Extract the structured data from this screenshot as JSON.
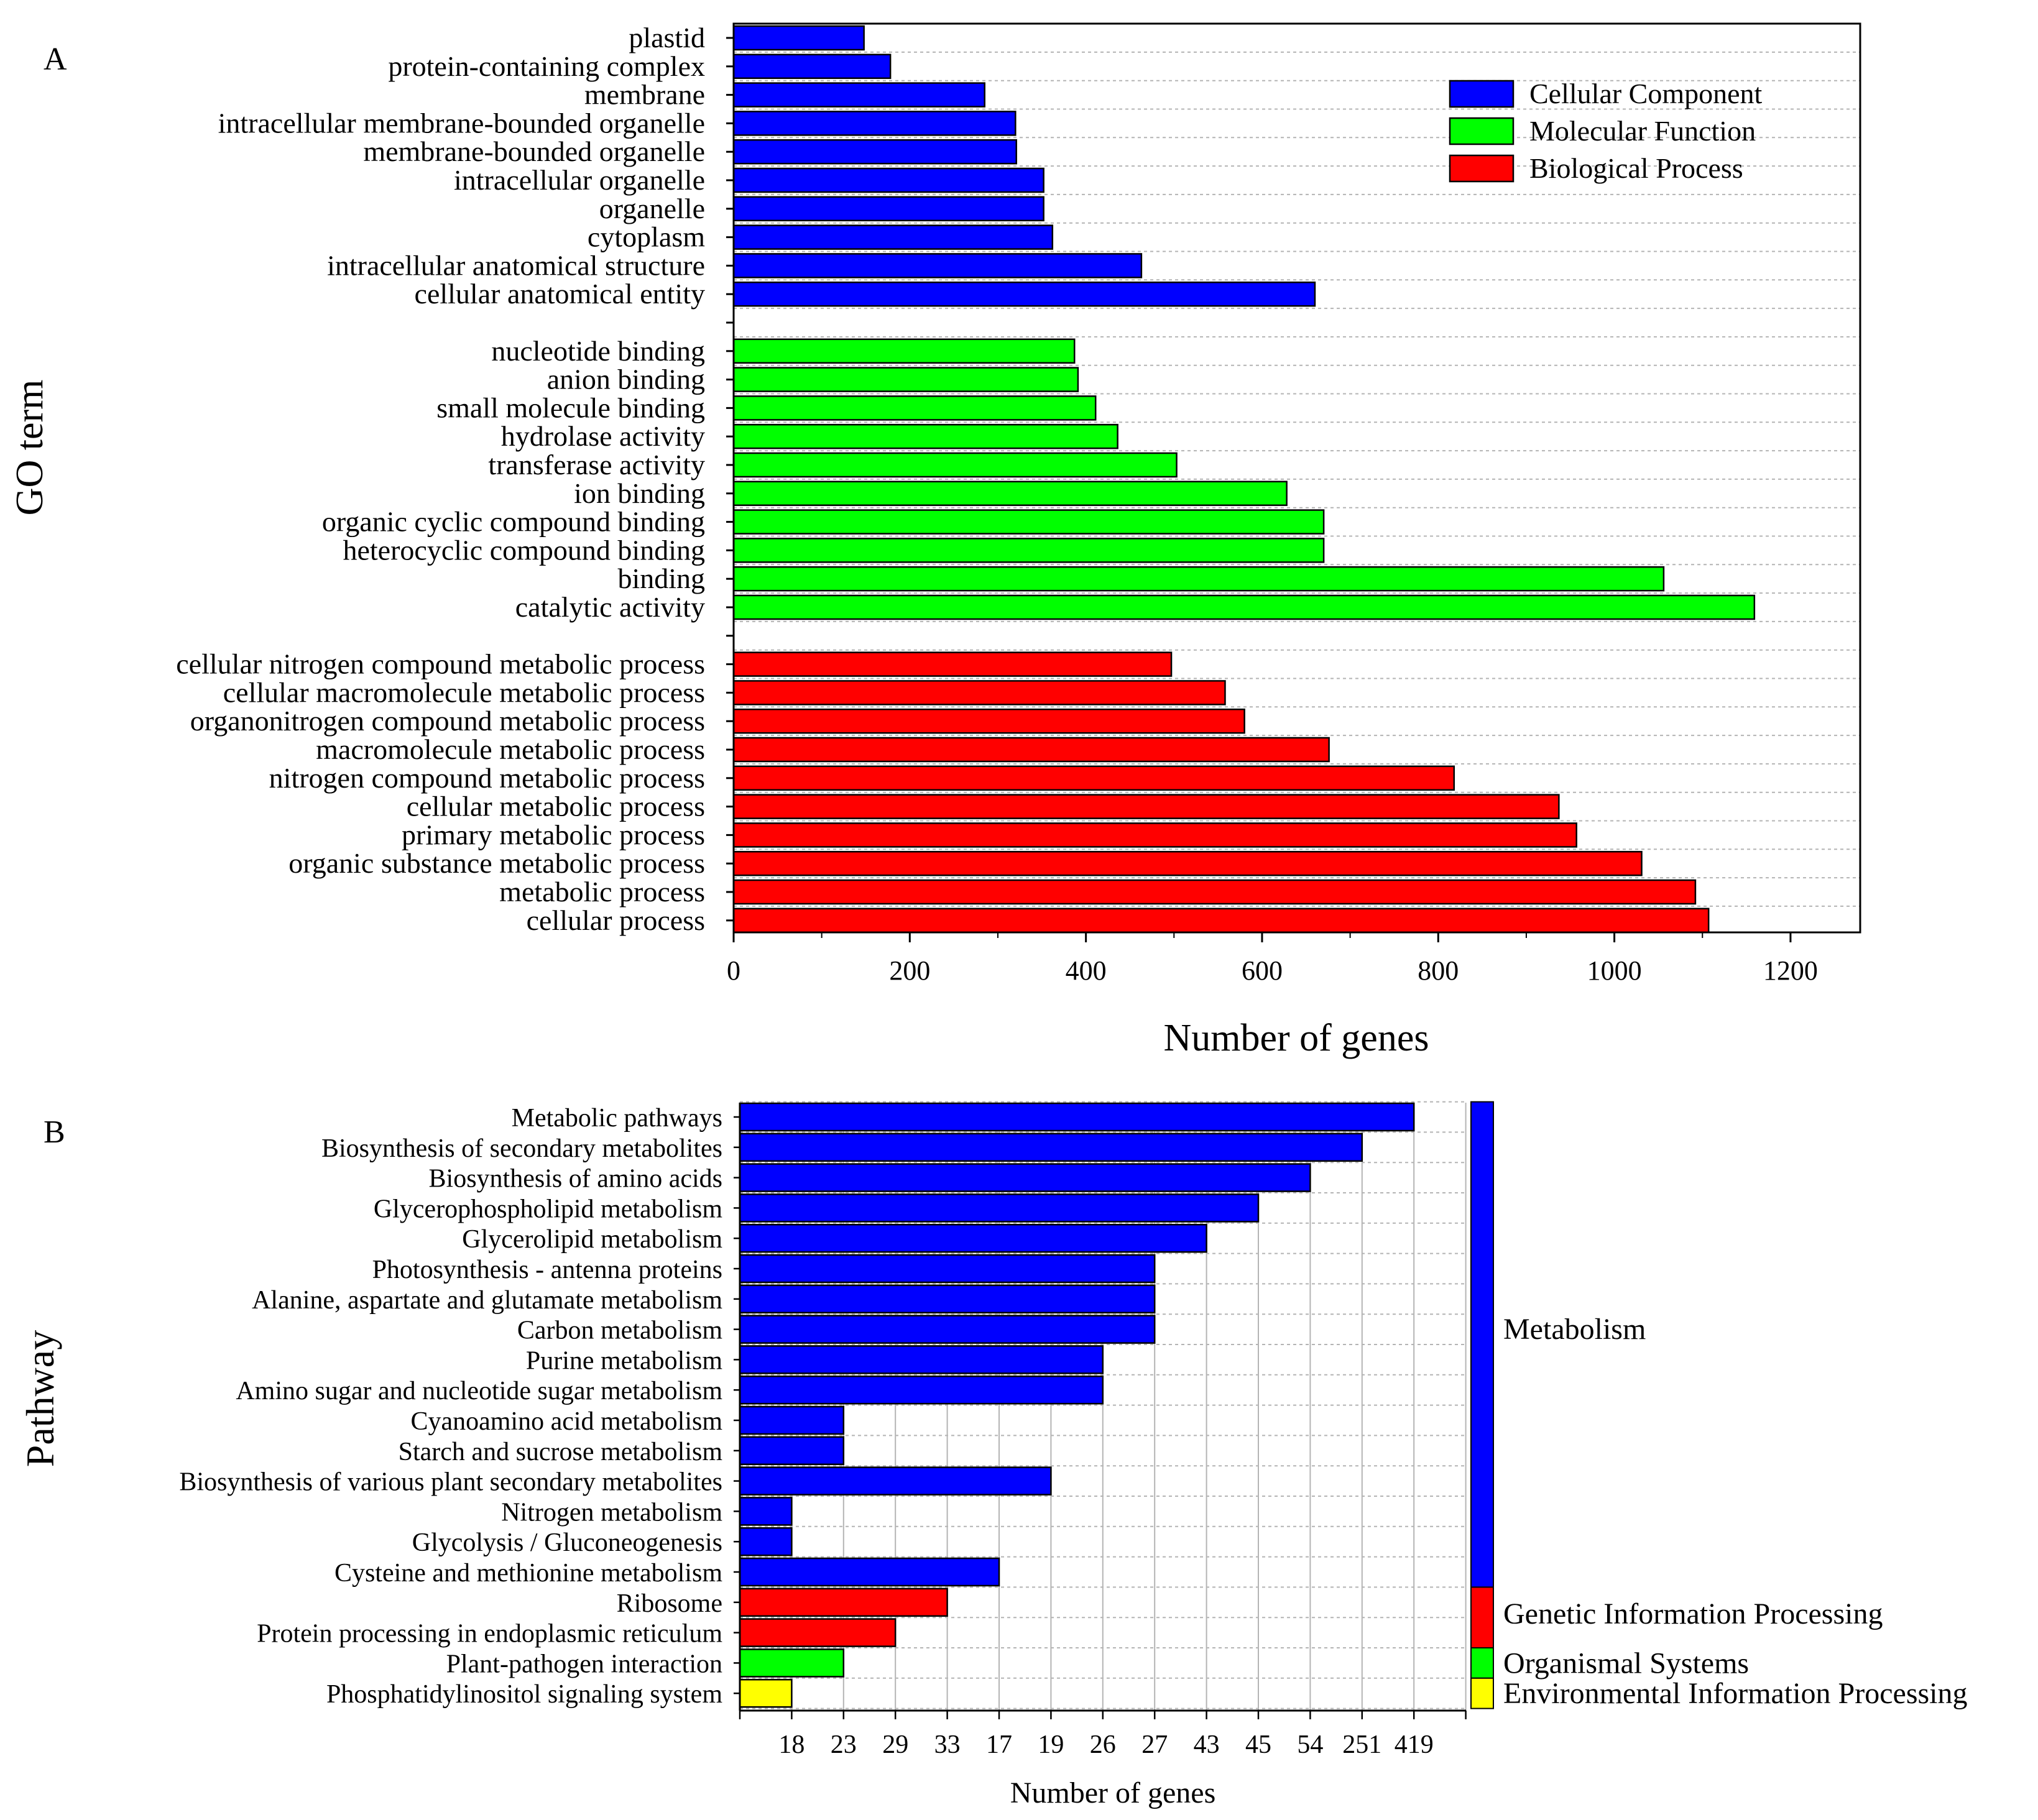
{
  "colors": {
    "cellular_component": "#0000ff",
    "molecular_function": "#00ff00",
    "biological_process": "#ff0000",
    "environmental": "#ffff00",
    "grid": "#b4b4b4"
  },
  "chart_data": [
    {
      "panel": "A",
      "type": "bar",
      "orientation": "horizontal",
      "xlabel": "Number of genes",
      "ylabel": "GO term",
      "xlim": [
        0,
        1280
      ],
      "xticks": [
        0,
        200,
        400,
        600,
        800,
        1000,
        1200
      ],
      "legend": {
        "position": "top-right",
        "entries": [
          {
            "label": "Cellular Component",
            "color": "#0000ff"
          },
          {
            "label": "Molecular Function",
            "color": "#00ff00"
          },
          {
            "label": "Biological Process",
            "color": "#ff0000"
          }
        ]
      },
      "groups": [
        {
          "name": "Cellular Component",
          "color": "#0000ff",
          "categories": [
            "plastid",
            "protein-containing complex",
            "membrane",
            "intracellular membrane-bounded organelle",
            "membrane-bounded organelle",
            "intracellular organelle",
            "organelle",
            "cytoplasm",
            "intracellular anatomical structure",
            "cellular anatomical entity"
          ],
          "values": [
            148,
            178,
            285,
            320,
            321,
            352,
            352,
            362,
            463,
            660
          ]
        },
        {
          "name": "Molecular Function",
          "color": "#00ff00",
          "categories": [
            "nucleotide binding",
            "anion binding",
            "small molecule binding",
            "hydrolase activity",
            "transferase activity",
            "ion binding",
            "organic cyclic compound binding",
            "heterocyclic compound binding",
            "binding",
            "catalytic activity"
          ],
          "values": [
            387,
            391,
            411,
            436,
            503,
            628,
            670,
            670,
            1056,
            1159
          ]
        },
        {
          "name": "Biological Process",
          "color": "#ff0000",
          "categories": [
            "cellular nitrogen compound metabolic process",
            "cellular macromolecule metabolic process",
            "organonitrogen compound metabolic process",
            "macromolecule metabolic process",
            "nitrogen compound metabolic process",
            "cellular metabolic process",
            "primary metabolic process",
            "organic substance metabolic process",
            "metabolic process",
            "cellular process"
          ],
          "values": [
            497,
            558,
            580,
            676,
            818,
            937,
            957,
            1031,
            1092,
            1107
          ]
        }
      ]
    },
    {
      "panel": "B",
      "type": "bar",
      "orientation": "horizontal",
      "xlabel": "Number of genes",
      "ylabel": "Pathway",
      "xticklabels": [
        "18",
        "23",
        "29",
        "33",
        "17",
        "19",
        "26",
        "27",
        "43",
        "45",
        "54",
        "251",
        "419"
      ],
      "categories": [
        "Metabolic pathways",
        "Biosynthesis of secondary metabolites",
        "Biosynthesis of amino acids",
        "Glycerophospholipid metabolism",
        "Glycerolipid metabolism",
        "Photosynthesis - antenna proteins",
        "Alanine, aspartate and glutamate metabolism",
        "Carbon metabolism",
        "Purine metabolism",
        "Amino sugar and nucleotide sugar metabolism",
        "Cyanoamino acid metabolism",
        "Starch and sucrose metabolism",
        "Biosynthesis of various plant secondary metabolites",
        "Nitrogen metabolism",
        "Glycolysis / Gluconeogenesis",
        "Cysteine and methionine metabolism",
        "Ribosome",
        "Protein processing in endoplasmic reticulum",
        "Plant-pathogen interaction",
        "Phosphatidylinositol signaling system"
      ],
      "values": [
        419,
        251,
        54,
        45,
        43,
        27,
        27,
        27,
        26,
        26,
        23,
        23,
        19,
        18,
        18,
        17,
        33,
        29,
        23,
        18
      ],
      "bar_tick_extent": [
        13,
        12,
        11,
        10,
        9,
        8,
        8,
        8,
        7,
        7,
        2,
        2,
        6,
        1,
        1,
        5,
        4,
        3,
        2,
        1
      ],
      "classes": [
        {
          "label": "Metabolism",
          "color": "#0000ff",
          "count": 16
        },
        {
          "label": "Genetic Information Processing",
          "color": "#ff0000",
          "count": 2
        },
        {
          "label": "Organismal Systems",
          "color": "#00ff00",
          "count": 1
        },
        {
          "label": "Environmental Information Processing",
          "color": "#ffff00",
          "count": 1
        }
      ]
    }
  ],
  "panel_labels": {
    "a": "A",
    "b": "B"
  }
}
